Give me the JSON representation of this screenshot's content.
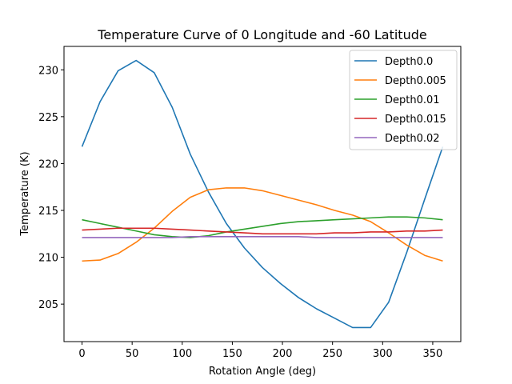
{
  "chart_data": {
    "type": "line",
    "title": "Temperature Curve of 0 Longitude and -60 Latitude",
    "xlabel": "Rotation Angle (deg)",
    "ylabel": "Temperature (K)",
    "xlim": [
      -18,
      378
    ],
    "ylim": [
      201,
      232.5
    ],
    "xticks": [
      0,
      50,
      100,
      150,
      200,
      250,
      300,
      350
    ],
    "yticks": [
      205,
      210,
      215,
      220,
      225,
      230
    ],
    "grid": false,
    "legend_position": "top-right",
    "x": [
      0,
      18,
      36,
      54,
      72,
      90,
      108,
      126,
      144,
      162,
      180,
      198,
      216,
      234,
      252,
      270,
      288,
      306,
      324,
      342,
      360
    ],
    "series": [
      {
        "name": "Depth0.0",
        "color": "#1f77b4",
        "values": [
          221.8,
          226.6,
          229.9,
          231.0,
          229.7,
          226.0,
          221.0,
          217.0,
          213.6,
          211.0,
          208.9,
          207.2,
          205.7,
          204.5,
          203.5,
          202.5,
          202.5,
          205.2,
          210.5,
          216.2,
          221.8
        ]
      },
      {
        "name": "Depth0.005",
        "color": "#ff7f0e",
        "values": [
          209.6,
          209.7,
          210.4,
          211.6,
          213.1,
          214.9,
          216.4,
          217.2,
          217.4,
          217.4,
          217.1,
          216.6,
          216.1,
          215.6,
          215.0,
          214.5,
          213.8,
          212.6,
          211.3,
          210.2,
          209.6
        ]
      },
      {
        "name": "Depth0.01",
        "color": "#2ca02c",
        "values": [
          214.0,
          213.6,
          213.2,
          212.8,
          212.4,
          212.2,
          212.1,
          212.3,
          212.7,
          213.0,
          213.3,
          213.6,
          213.8,
          213.9,
          214.0,
          214.1,
          214.2,
          214.3,
          214.3,
          214.2,
          214.0
        ]
      },
      {
        "name": "Depth0.015",
        "color": "#d62728",
        "values": [
          212.9,
          213.0,
          213.1,
          213.1,
          213.1,
          213.0,
          212.9,
          212.8,
          212.7,
          212.6,
          212.5,
          212.5,
          212.5,
          212.5,
          212.6,
          212.6,
          212.7,
          212.7,
          212.8,
          212.8,
          212.9
        ]
      },
      {
        "name": "Depth0.02",
        "color": "#9467bd",
        "values": [
          212.1,
          212.1,
          212.1,
          212.1,
          212.1,
          212.1,
          212.2,
          212.2,
          212.2,
          212.2,
          212.2,
          212.2,
          212.2,
          212.1,
          212.1,
          212.1,
          212.1,
          212.1,
          212.1,
          212.1,
          212.1
        ]
      }
    ]
  }
}
